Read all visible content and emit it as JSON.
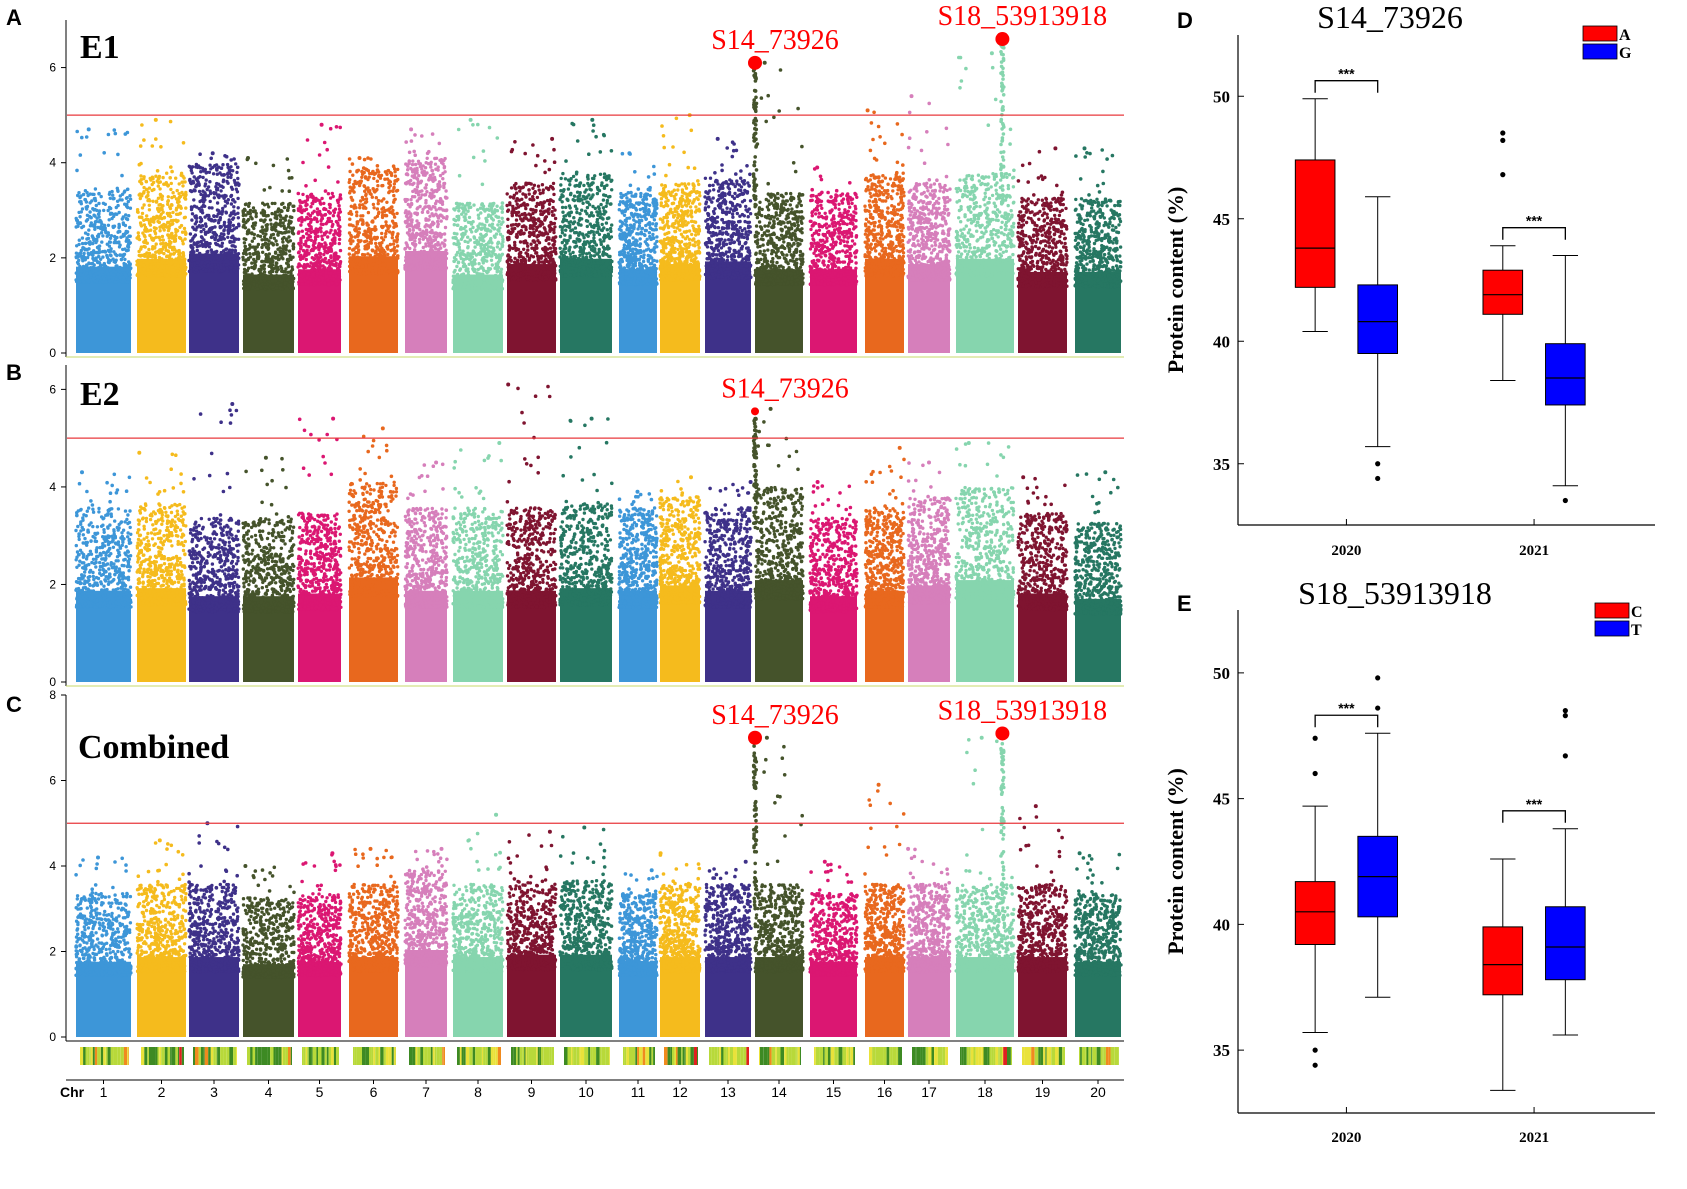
{
  "chart_data": [
    {
      "type": "scatter",
      "subtype": "manhattan",
      "panel": "A",
      "label": "E1",
      "ylim": [
        0,
        7
      ],
      "yticks": [
        0,
        2,
        4,
        6
      ],
      "threshold": 5,
      "chromosomes": [
        1,
        2,
        3,
        4,
        5,
        6,
        7,
        8,
        9,
        10,
        11,
        12,
        13,
        14,
        15,
        16,
        17,
        18,
        19,
        20
      ],
      "colors": [
        "#3d96d8",
        "#f5bb1d",
        "#3e3189",
        "#45532b",
        "#db1772",
        "#e8681e",
        "#d67fbb",
        "#86d5ae",
        "#7f1430",
        "#267762",
        "#3d96d8",
        "#f5bb1d",
        "#3e3189",
        "#45532b",
        "#db1772",
        "#e8681e",
        "#d67fbb",
        "#86d5ae",
        "#7f1430",
        "#267762"
      ],
      "base_heights": [
        3.3,
        3.6,
        3.8,
        3.0,
        3.2,
        3.7,
        3.9,
        3.0,
        3.4,
        3.6,
        3.2,
        3.4,
        3.5,
        3.2,
        3.2,
        3.6,
        3.4,
        3.6,
        3.1,
        3.1
      ],
      "chr_max": [
        4.7,
        4.9,
        4.2,
        4.1,
        4.8,
        4.1,
        4.7,
        4.9,
        4.5,
        4.9,
        4.2,
        5.0,
        4.5,
        6.1,
        3.9,
        5.1,
        5.4,
        6.3,
        4.3,
        4.3
      ],
      "highlights": [
        {
          "chr": 14,
          "pos": 0.0,
          "y": 6.1,
          "label": "S14_73926"
        },
        {
          "chr": 18,
          "pos": 0.8,
          "y": 6.6,
          "label": "S18_53913918"
        }
      ]
    },
    {
      "type": "scatter",
      "subtype": "manhattan",
      "panel": "B",
      "label": "E2",
      "ylim": [
        0,
        6.5
      ],
      "yticks": [
        0,
        2,
        4,
        6
      ],
      "threshold": 5,
      "chromosomes": [
        1,
        2,
        3,
        4,
        5,
        6,
        7,
        8,
        9,
        10,
        11,
        12,
        13,
        14,
        15,
        16,
        17,
        18,
        19,
        20
      ],
      "colors": [
        "#3d96d8",
        "#f5bb1d",
        "#3e3189",
        "#45532b",
        "#db1772",
        "#e8681e",
        "#d67fbb",
        "#86d5ae",
        "#7f1430",
        "#267762",
        "#3d96d8",
        "#f5bb1d",
        "#3e3189",
        "#45532b",
        "#db1772",
        "#e8681e",
        "#d67fbb",
        "#86d5ae",
        "#7f1430",
        "#267762"
      ],
      "base_heights": [
        3.4,
        3.5,
        3.2,
        3.2,
        3.3,
        3.9,
        3.4,
        3.4,
        3.4,
        3.5,
        3.4,
        3.6,
        3.4,
        3.8,
        3.2,
        3.4,
        3.6,
        3.8,
        3.3,
        3.1
      ],
      "chr_max": [
        4.3,
        4.7,
        5.7,
        4.6,
        5.4,
        5.2,
        4.5,
        4.9,
        6.1,
        5.4,
        3.9,
        4.2,
        4.1,
        5.6,
        4.1,
        4.8,
        4.5,
        4.9,
        4.2,
        4.3
      ],
      "highlights": [
        {
          "chr": 14,
          "pos": 0.0,
          "y": 5.55,
          "label": "S14_73926"
        }
      ]
    },
    {
      "type": "scatter",
      "subtype": "manhattan",
      "panel": "C",
      "label": "Combined",
      "ylim": [
        0,
        8
      ],
      "yticks": [
        0,
        2,
        4,
        6,
        8
      ],
      "threshold": 5,
      "xlabel": "Chr",
      "chromosomes": [
        1,
        2,
        3,
        4,
        5,
        6,
        7,
        8,
        9,
        10,
        11,
        12,
        13,
        14,
        15,
        16,
        17,
        18,
        19,
        20
      ],
      "colors": [
        "#3d96d8",
        "#f5bb1d",
        "#3e3189",
        "#45532b",
        "#db1772",
        "#e8681e",
        "#d67fbb",
        "#86d5ae",
        "#7f1430",
        "#267762",
        "#3d96d8",
        "#f5bb1d",
        "#3e3189",
        "#45532b",
        "#db1772",
        "#e8681e",
        "#d67fbb",
        "#86d5ae",
        "#7f1430",
        "#267762"
      ],
      "base_heights": [
        3.2,
        3.4,
        3.4,
        3.1,
        3.2,
        3.4,
        3.7,
        3.4,
        3.5,
        3.5,
        3.2,
        3.4,
        3.4,
        3.4,
        3.2,
        3.4,
        3.4,
        3.4,
        3.4,
        3.2
      ],
      "chr_max": [
        4.2,
        4.6,
        5.0,
        4.0,
        4.3,
        4.4,
        4.4,
        5.2,
        4.8,
        4.9,
        3.9,
        4.3,
        4.1,
        7.0,
        4.1,
        5.9,
        4.4,
        7.0,
        5.4,
        4.3
      ],
      "highlights": [
        {
          "chr": 14,
          "pos": 0.0,
          "y": 7.0,
          "label": "S14_73926"
        },
        {
          "chr": 18,
          "pos": 0.8,
          "y": 7.1,
          "label": "S18_53913918"
        }
      ],
      "density_track": true
    },
    {
      "type": "box",
      "panel": "D",
      "title": "S14_73926",
      "ylabel": "Protein content (%)",
      "ylim": [
        32.5,
        52.5
      ],
      "yticks": [
        35,
        40,
        45,
        50
      ],
      "categories": [
        "2020",
        "2021"
      ],
      "series": [
        {
          "name": "A",
          "color": "#ff0000",
          "boxes": [
            {
              "min": 40.4,
              "q1": 42.2,
              "median": 43.8,
              "q3": 47.4,
              "max": 49.9,
              "outliers": []
            },
            {
              "min": 38.4,
              "q1": 41.1,
              "median": 41.9,
              "q3": 42.9,
              "max": 43.9,
              "outliers": [
                46.8,
                48.2,
                48.5
              ]
            }
          ]
        },
        {
          "name": "G",
          "color": "#0000ff",
          "boxes": [
            {
              "min": 35.7,
              "q1": 39.5,
              "median": 40.8,
              "q3": 42.3,
              "max": 45.9,
              "outliers": [
                35.0,
                34.4
              ]
            },
            {
              "min": 34.1,
              "q1": 37.4,
              "median": 38.5,
              "q3": 39.9,
              "max": 43.5,
              "outliers": [
                33.5
              ]
            }
          ]
        }
      ],
      "significance": [
        "***",
        "***"
      ]
    },
    {
      "type": "box",
      "panel": "E",
      "title": "S18_53913918",
      "ylabel": "Protein content (%)",
      "ylim": [
        32.5,
        52.5
      ],
      "yticks": [
        35,
        40,
        45,
        50
      ],
      "categories": [
        "2020",
        "2021"
      ],
      "series": [
        {
          "name": "C",
          "color": "#ff0000",
          "boxes": [
            {
              "min": 35.7,
              "q1": 39.2,
              "median": 40.5,
              "q3": 41.7,
              "max": 44.7,
              "outliers": [
                46.0,
                47.4,
                35.0,
                34.4
              ]
            },
            {
              "min": 33.4,
              "q1": 37.2,
              "median": 38.4,
              "q3": 39.9,
              "max": 42.6,
              "outliers": []
            }
          ]
        },
        {
          "name": "T",
          "color": "#0000ff",
          "boxes": [
            {
              "min": 37.1,
              "q1": 40.3,
              "median": 41.9,
              "q3": 43.5,
              "max": 47.6,
              "outliers": [
                48.6,
                49.8
              ]
            },
            {
              "min": 35.6,
              "q1": 37.8,
              "median": 39.1,
              "q3": 40.7,
              "max": 43.8,
              "outliers": [
                46.7,
                48.3,
                48.5
              ]
            }
          ]
        }
      ],
      "significance": [
        "***",
        "***"
      ]
    }
  ],
  "panel_letters": [
    "A",
    "B",
    "C",
    "D",
    "E"
  ]
}
